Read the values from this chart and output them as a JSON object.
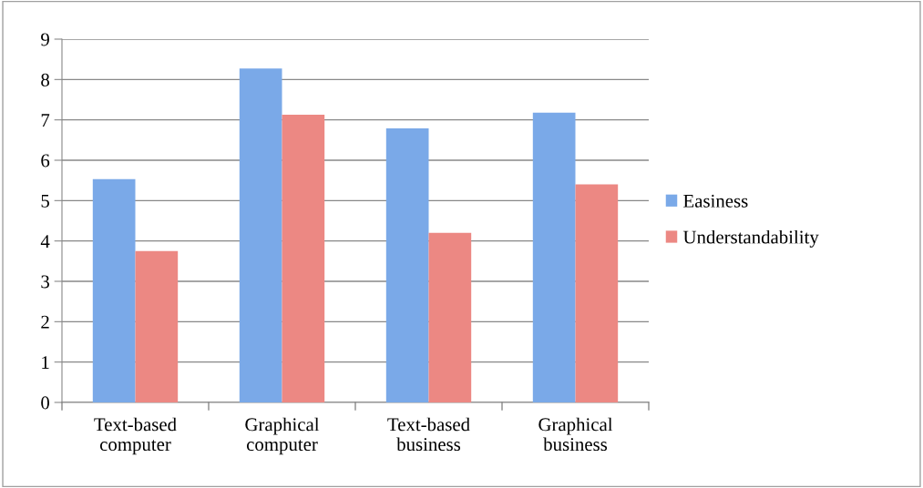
{
  "chart_data": {
    "type": "bar",
    "categories": [
      "Text-based\ncomputer",
      "Graphical\ncomputer",
      "Text-based\nbusiness",
      "Graphical\nbusiness"
    ],
    "series": [
      {
        "name": "Easiness",
        "color": "#7aa9e8",
        "values": [
          5.53,
          8.27,
          6.79,
          7.18
        ]
      },
      {
        "name": "Understandability",
        "color": "#ec8883",
        "values": [
          3.75,
          7.13,
          4.2,
          5.4
        ]
      }
    ],
    "ylim": [
      0,
      9
    ],
    "yticks": [
      0,
      1,
      2,
      3,
      4,
      5,
      6,
      7,
      8,
      9
    ],
    "grid": "y",
    "legend": "right"
  }
}
